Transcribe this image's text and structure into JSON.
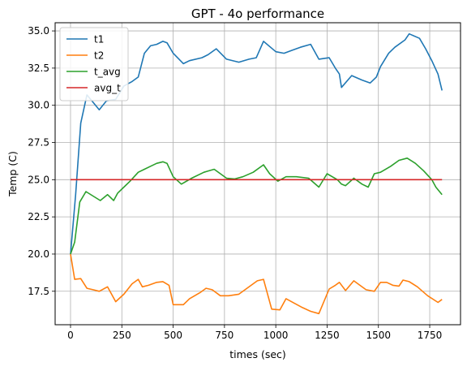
{
  "chart_data": {
    "type": "line",
    "title": "GPT - 4o performance",
    "xlabel": "times (sec)",
    "ylabel": "Temp (C)",
    "xlim": [
      -75,
      1900
    ],
    "ylim": [
      15.25,
      35.55
    ],
    "xticks": [
      0,
      250,
      500,
      750,
      1000,
      1250,
      1500,
      1750
    ],
    "xtick_labels": [
      "0",
      "250",
      "500",
      "750",
      "1000",
      "1250",
      "1500",
      "1750"
    ],
    "yticks": [
      17.5,
      20.0,
      22.5,
      25.0,
      27.5,
      30.0,
      32.5,
      35.0
    ],
    "ytick_labels": [
      "17.5",
      "20.0",
      "22.5",
      "25.0",
      "27.5",
      "30.0",
      "32.5",
      "35.0"
    ],
    "grid": true,
    "legend_position": "top-left",
    "series": [
      {
        "name": "t1",
        "color": "#1f77b4",
        "x": [
          0,
          25,
          50,
          80,
          110,
          140,
          175,
          220,
          260,
          300,
          330,
          360,
          390,
          420,
          450,
          470,
          500,
          550,
          580,
          640,
          670,
          710,
          760,
          820,
          870,
          905,
          940,
          1000,
          1040,
          1080,
          1120,
          1170,
          1210,
          1260,
          1290,
          1310,
          1320,
          1370,
          1420,
          1460,
          1490,
          1510,
          1550,
          1580,
          1630,
          1650,
          1700,
          1730,
          1760,
          1790,
          1810
        ],
        "y": [
          20.0,
          24.0,
          28.8,
          30.7,
          30.2,
          29.7,
          30.3,
          30.4,
          31.3,
          31.6,
          31.9,
          33.5,
          34.0,
          34.1,
          34.3,
          34.2,
          33.5,
          32.8,
          33.0,
          33.2,
          33.4,
          33.8,
          33.1,
          32.9,
          33.1,
          33.2,
          34.3,
          33.6,
          33.5,
          33.7,
          33.9,
          34.1,
          33.1,
          33.2,
          32.5,
          32.1,
          31.2,
          32.0,
          31.7,
          31.5,
          31.9,
          32.6,
          33.5,
          33.9,
          34.4,
          34.8,
          34.5,
          33.8,
          33.0,
          32.1,
          31.0
        ]
      },
      {
        "name": "t2",
        "color": "#ff7f0e",
        "x": [
          0,
          20,
          50,
          80,
          110,
          140,
          180,
          220,
          260,
          300,
          330,
          350,
          380,
          420,
          450,
          480,
          500,
          550,
          580,
          630,
          660,
          690,
          730,
          770,
          820,
          880,
          910,
          940,
          980,
          1020,
          1050,
          1090,
          1130,
          1170,
          1210,
          1260,
          1290,
          1310,
          1340,
          1380,
          1410,
          1440,
          1480,
          1510,
          1540,
          1570,
          1600,
          1620,
          1650,
          1690,
          1740,
          1790,
          1810
        ],
        "y": [
          20.0,
          18.3,
          18.35,
          17.7,
          17.6,
          17.5,
          17.8,
          16.8,
          17.3,
          18.0,
          18.3,
          17.8,
          17.9,
          18.1,
          18.15,
          17.9,
          16.6,
          16.6,
          17.0,
          17.4,
          17.7,
          17.6,
          17.2,
          17.2,
          17.3,
          17.9,
          18.2,
          18.3,
          16.3,
          16.25,
          17.0,
          16.7,
          16.4,
          16.15,
          16.0,
          17.65,
          17.9,
          18.1,
          17.55,
          18.2,
          17.9,
          17.6,
          17.5,
          18.1,
          18.1,
          17.9,
          17.85,
          18.25,
          18.15,
          17.8,
          17.2,
          16.75,
          16.95
        ]
      },
      {
        "name": "t_avg",
        "color": "#2ca02c",
        "x": [
          0,
          20,
          45,
          75,
          110,
          145,
          180,
          210,
          230,
          260,
          290,
          330,
          360,
          390,
          420,
          450,
          470,
          500,
          540,
          590,
          650,
          700,
          760,
          800,
          840,
          890,
          940,
          970,
          1010,
          1050,
          1100,
          1160,
          1210,
          1250,
          1300,
          1320,
          1340,
          1380,
          1420,
          1450,
          1480,
          1510,
          1560,
          1600,
          1640,
          1680,
          1720,
          1760,
          1780,
          1810
        ],
        "y": [
          20.0,
          20.8,
          23.5,
          24.2,
          23.9,
          23.6,
          24.0,
          23.6,
          24.1,
          24.5,
          24.9,
          25.5,
          25.7,
          25.9,
          26.1,
          26.2,
          26.1,
          25.2,
          24.7,
          25.1,
          25.5,
          25.7,
          25.1,
          25.05,
          25.2,
          25.5,
          26.0,
          25.4,
          24.9,
          25.2,
          25.2,
          25.1,
          24.5,
          25.4,
          25.0,
          24.7,
          24.6,
          25.1,
          24.7,
          24.5,
          25.4,
          25.5,
          25.9,
          26.3,
          26.45,
          26.1,
          25.6,
          25.0,
          24.5,
          24.0
        ]
      },
      {
        "name": "avg_t",
        "color": "#d62728",
        "x": [
          0,
          1810
        ],
        "y": [
          25.0,
          25.0
        ]
      }
    ]
  }
}
